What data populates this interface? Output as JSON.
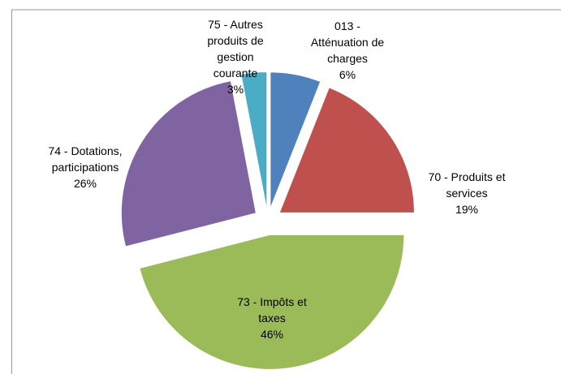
{
  "chart_data": {
    "type": "pie",
    "categories": [
      "013 - Atténuation de charges",
      "70 - Produits et services",
      "73 - Impôts et taxes",
      "74 - Dotations, participations",
      "75 - Autres produits de gestion courante"
    ],
    "values": [
      6,
      19,
      46,
      26,
      3
    ],
    "value_labels": [
      "6%",
      "19%",
      "46%",
      "26%",
      "3%"
    ],
    "colors": [
      "#4f81bd",
      "#c0504d",
      "#9bbb59",
      "#8064a2",
      "#4bacc6"
    ]
  }
}
